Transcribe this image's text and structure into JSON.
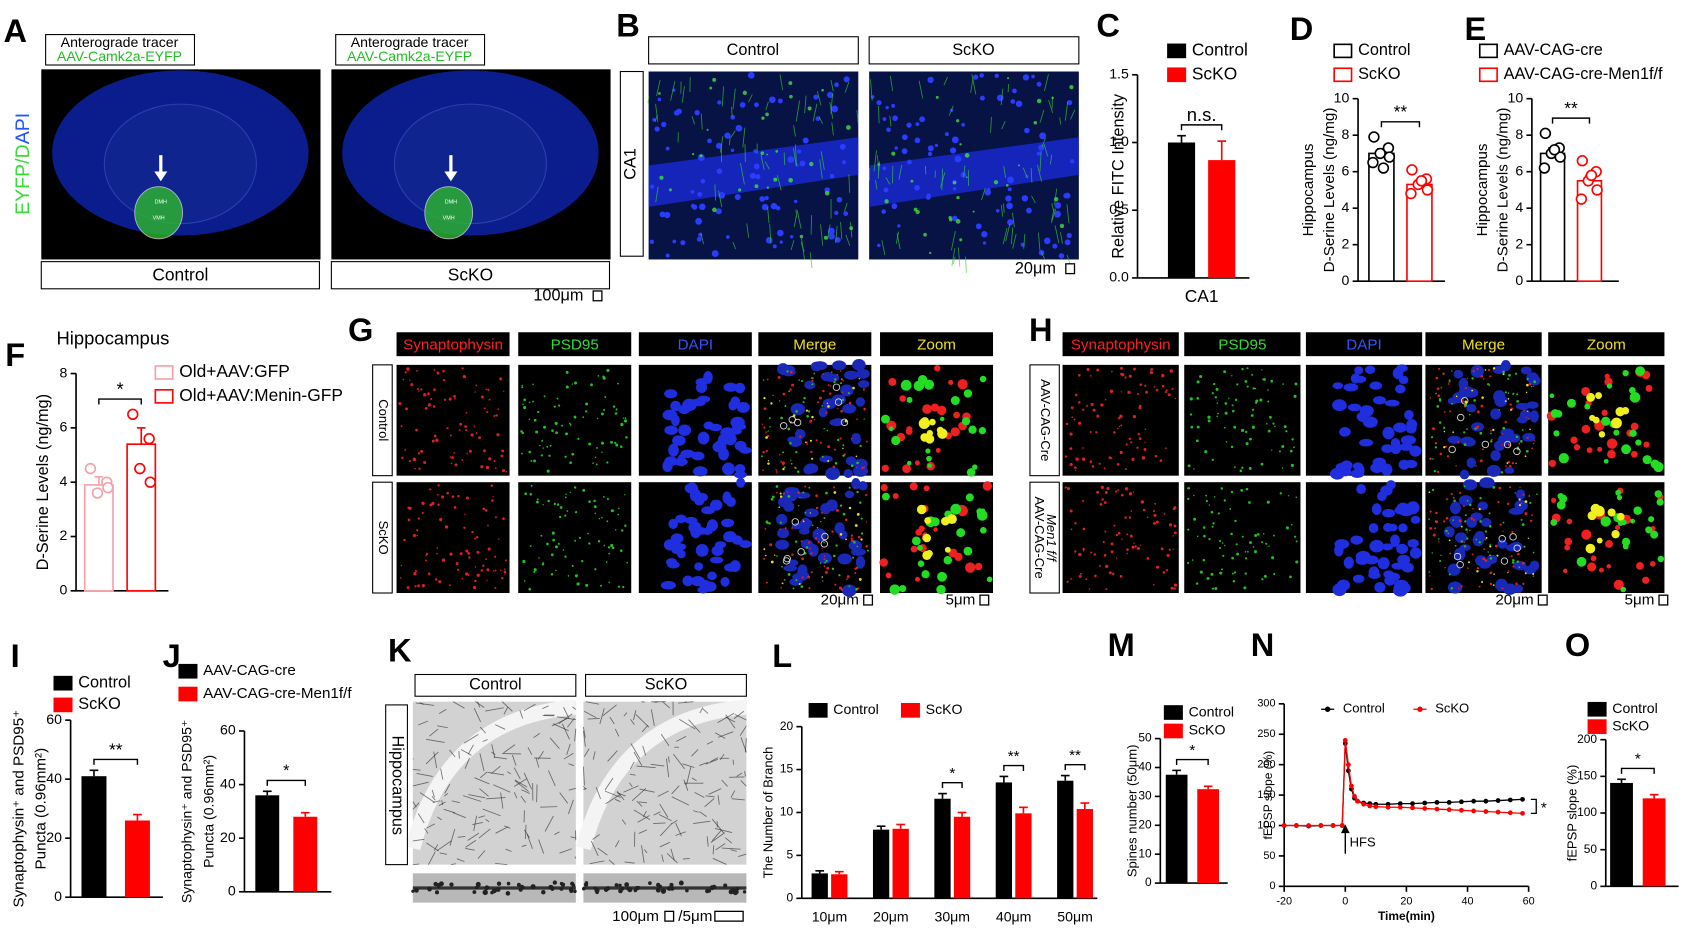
{
  "panel_labels": [
    "A",
    "B",
    "C",
    "D",
    "E",
    "F",
    "G",
    "H",
    "I",
    "J",
    "K",
    "L",
    "M",
    "N",
    "O"
  ],
  "image_panels": {
    "A": {
      "header": "Anterograde tracer",
      "tracer": "AAV-Camk2a-EYFP",
      "stain": "EYFP/DAPI",
      "groups": [
        "Control",
        "ScKO"
      ],
      "regions": [
        "DMH",
        "VMH"
      ],
      "scale": "100μm"
    },
    "B": {
      "groups": [
        "Control",
        "ScKO"
      ],
      "region": "CA1",
      "scale": "20μm"
    },
    "G": {
      "channels": [
        "Synaptophysin",
        "PSD95",
        "DAPI",
        "Merge",
        "Zoom"
      ],
      "rows": [
        [
          "Control"
        ],
        [
          "ScKO"
        ]
      ],
      "scales": [
        "20μm",
        "5μm"
      ]
    },
    "H": {
      "channels": [
        "Synaptophysin",
        "PSD95",
        "DAPI",
        "Merge",
        "Zoom"
      ],
      "rows": [
        [
          "AAV-CAG-Cre"
        ],
        [
          "AAV-CAG-Cre",
          "Men1 f/f"
        ]
      ],
      "scales": [
        "20μm",
        "5μm"
      ]
    },
    "K": {
      "groups": [
        "Control",
        "ScKO"
      ],
      "region": "Hippocampus",
      "scales": [
        "100μm",
        "/5μm"
      ]
    }
  },
  "chart_data": [
    {
      "type": "bar",
      "ylabel": [
        "Relative FITC Intensity"
      ],
      "categories": [
        "CA1"
      ],
      "series": [
        {
          "name": "Control",
          "color": "#000000",
          "values": [
            1.0
          ],
          "errors": [
            0.05
          ]
        },
        {
          "name": "ScKO",
          "color": "#ff0000",
          "values": [
            0.87
          ],
          "errors": [
            0.14
          ]
        }
      ],
      "ylim": [
        0,
        1.5
      ],
      "yticks": [
        {
          "value": 0,
          "label": "0.0"
        },
        {
          "value": 0.5,
          "label": "0.5"
        },
        {
          "value": 1,
          "label": "1.0"
        },
        {
          "value": 1.5,
          "label": "1.5"
        }
      ],
      "annotations": [
        "n.s."
      ]
    },
    {
      "type": "bar",
      "bar_style": "outline",
      "ylabel": [
        "Hippocampus",
        "D-Serine Levels (ng/mg)"
      ],
      "categories": [
        null
      ],
      "series": [
        {
          "name": "Control",
          "color": "#000000",
          "values": [
            7.0
          ],
          "errors": [
            0.25
          ],
          "points": [
            7.9,
            7.3,
            7.0,
            6.8,
            6.5,
            6.2
          ]
        },
        {
          "name": "ScKO",
          "color": "#ff0000",
          "values": [
            5.3
          ],
          "errors": [
            0.2
          ],
          "points": [
            6.1,
            5.6,
            5.3,
            5.0,
            4.8,
            5.5
          ]
        }
      ],
      "ylim": [
        0,
        10
      ],
      "yticks": [
        0,
        2,
        4,
        6,
        8,
        10
      ],
      "annotations": [
        "**"
      ]
    },
    {
      "type": "bar",
      "bar_style": "outline",
      "ylabel": [
        "Hippocampus",
        "D-Serine Levels (ng/mg)"
      ],
      "categories": [
        null
      ],
      "series": [
        {
          "name": "AAV-CAG-cre",
          "color": "#000000",
          "values": [
            7.0
          ],
          "errors": [
            0.3
          ],
          "points": [
            8.1,
            7.3,
            7.0,
            6.8,
            6.2,
            7.2
          ]
        },
        {
          "name": "AAV-CAG-cre-Men1f/f",
          "color": "#ff0000",
          "values": [
            5.5
          ],
          "errors": [
            0.3
          ],
          "points": [
            6.6,
            6.0,
            5.5,
            5.0,
            4.5,
            5.8
          ]
        }
      ],
      "ylim": [
        0,
        10
      ],
      "yticks": [
        0,
        2,
        4,
        6,
        8,
        10
      ],
      "annotations": [
        "**"
      ]
    },
    {
      "type": "bar",
      "bar_style": "outline",
      "title": "Hippocampus",
      "ylabel": [
        "D-Serine Levels (ng/mg)"
      ],
      "categories": [
        null
      ],
      "series": [
        {
          "name": "Old+AAV:GFP",
          "color": "#f4a0a8",
          "values": [
            3.9
          ],
          "errors": [
            0.3
          ],
          "points": [
            4.5,
            4.0,
            3.6,
            3.8
          ]
        },
        {
          "name": "Old+AAV:Menin-GFP",
          "color": "#ff0000",
          "values": [
            5.4
          ],
          "errors": [
            0.6
          ],
          "points": [
            6.5,
            5.6,
            4.5,
            4.0
          ]
        }
      ],
      "ylim": [
        0,
        8
      ],
      "yticks": [
        0,
        2,
        4,
        6,
        8
      ],
      "annotations": [
        "*"
      ]
    },
    {
      "type": "bar",
      "ylabel": [
        "Synaptophysin⁺ and PSD95⁺",
        "Puncta (0.96mm²)"
      ],
      "categories": [
        null
      ],
      "series": [
        {
          "name": "Control",
          "color": "#000000",
          "values": [
            41
          ],
          "errors": [
            2
          ]
        },
        {
          "name": "ScKO",
          "color": "#ff0000",
          "values": [
            26
          ],
          "errors": [
            2
          ]
        }
      ],
      "ylim": [
        0,
        60
      ],
      "yticks": [
        0,
        20,
        40,
        60
      ],
      "annotations": [
        "**"
      ]
    },
    {
      "type": "bar",
      "ylabel": [
        "Synaptophysin⁺ and PSD95⁺",
        "Puncta (0.96mm²)"
      ],
      "categories": [
        null
      ],
      "series": [
        {
          "name": "AAV-CAG-cre",
          "color": "#000000",
          "values": [
            36
          ],
          "errors": [
            1.5
          ]
        },
        {
          "name": "AAV-CAG-cre-Men1f/f",
          "color": "#ff0000",
          "values": [
            28
          ],
          "errors": [
            1.5
          ]
        }
      ],
      "ylim": [
        0,
        60
      ],
      "yticks": [
        0,
        20,
        40,
        60
      ],
      "annotations": [
        "*"
      ]
    },
    {
      "type": "bar",
      "ylabel": [
        "The Number of Branch"
      ],
      "categories": [
        "10μm",
        "20μm",
        "30μm",
        "40μm",
        "50μm"
      ],
      "series": [
        {
          "name": "Control",
          "color": "#000000",
          "values": [
            2.9,
            8.0,
            11.6,
            13.5,
            13.7
          ],
          "errors": [
            0.3,
            0.4,
            0.6,
            0.7,
            0.6
          ]
        },
        {
          "name": "ScKO",
          "color": "#ff0000",
          "values": [
            2.8,
            8.1,
            9.5,
            9.9,
            10.4
          ],
          "errors": [
            0.3,
            0.5,
            0.5,
            0.7,
            0.7
          ]
        }
      ],
      "ylim": [
        0,
        20
      ],
      "yticks": [
        0,
        5,
        10,
        15,
        20
      ],
      "annotations": [
        "*",
        "**",
        "**"
      ]
    },
    {
      "type": "bar",
      "ylabel": [
        "Spines number (50μm)"
      ],
      "categories": [
        null
      ],
      "series": [
        {
          "name": "Control",
          "color": "#000000",
          "values": [
            37.5
          ],
          "errors": [
            1.5
          ]
        },
        {
          "name": "ScKO",
          "color": "#ff0000",
          "values": [
            32.5
          ],
          "errors": [
            1
          ]
        }
      ],
      "ylim": [
        0,
        50
      ],
      "yticks": [
        0,
        10,
        20,
        30,
        40,
        50
      ],
      "annotations": [
        "*"
      ]
    },
    {
      "type": "line",
      "xlabel": "Time(min)",
      "ylabel": [
        "fEPSP slope (%)"
      ],
      "x": [
        -20,
        -16,
        -12,
        -8,
        -4,
        -1,
        0,
        1,
        2,
        3,
        4,
        6,
        8,
        10,
        14,
        18,
        22,
        26,
        30,
        34,
        38,
        42,
        46,
        50,
        54,
        58
      ],
      "series": [
        {
          "name": "Control",
          "color": "#000000",
          "values": [
            100,
            100,
            99,
            100,
            100,
            100,
            235,
            190,
            160,
            145,
            140,
            137,
            136,
            135,
            135,
            136,
            136,
            137,
            138,
            138,
            139,
            140,
            140,
            141,
            142,
            143
          ]
        },
        {
          "name": "ScKO",
          "color": "#ff0000",
          "values": [
            100,
            100,
            100,
            100,
            100,
            100,
            240,
            200,
            165,
            148,
            140,
            135,
            132,
            131,
            130,
            130,
            129,
            128,
            127,
            126,
            125,
            124,
            123,
            122,
            121,
            120
          ]
        }
      ],
      "xlim": [
        -20,
        60
      ],
      "xticks": [
        -20,
        0,
        20,
        40,
        60
      ],
      "ylim": [
        0,
        300
      ],
      "yticks": [
        0,
        50,
        100,
        150,
        200,
        250,
        300
      ],
      "annotations": [
        "HFS",
        "*"
      ]
    },
    {
      "type": "bar",
      "ylabel": [
        "fEPSP slope (%)"
      ],
      "categories": [
        null
      ],
      "series": [
        {
          "name": "Control",
          "color": "#000000",
          "values": [
            141
          ],
          "errors": [
            5
          ]
        },
        {
          "name": "ScKO",
          "color": "#ff0000",
          "values": [
            120
          ],
          "errors": [
            5
          ]
        }
      ],
      "ylim": [
        0,
        200
      ],
      "yticks": [
        0,
        50,
        100,
        150,
        200
      ],
      "annotations": [
        "*"
      ]
    }
  ]
}
